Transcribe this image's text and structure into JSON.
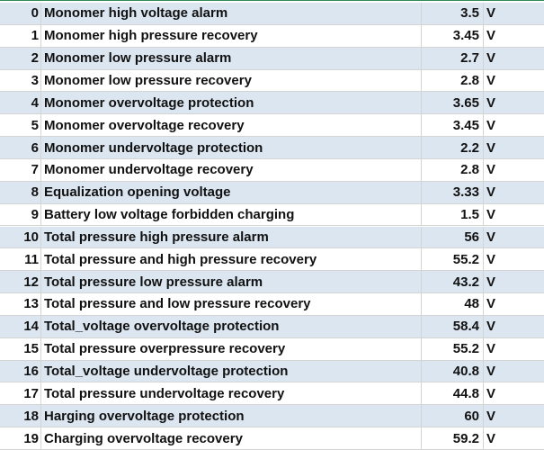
{
  "table": {
    "rows": [
      [
        0,
        "Monomer high voltage alarm",
        3.5,
        "V"
      ],
      [
        1,
        "Monomer high pressure recovery",
        3.45,
        "V"
      ],
      [
        2,
        "Monomer low pressure alarm",
        2.7,
        "V"
      ],
      [
        3,
        "Monomer low pressure recovery",
        2.8,
        "V"
      ],
      [
        4,
        "Monomer overvoltage protection",
        3.65,
        "V"
      ],
      [
        5,
        "Monomer overvoltage recovery",
        3.45,
        "V"
      ],
      [
        6,
        "Monomer undervoltage protection",
        2.2,
        "V"
      ],
      [
        7,
        "Monomer undervoltage recovery",
        2.8,
        "V"
      ],
      [
        8,
        "Equalization opening voltage",
        3.33,
        "V"
      ],
      [
        9,
        "Battery low voltage forbidden charging",
        1.5,
        "V"
      ],
      [
        10,
        "Total pressure high pressure alarm",
        56,
        "V"
      ],
      [
        11,
        "Total pressure and high pressure recovery",
        55.2,
        "V"
      ],
      [
        12,
        "Total pressure low pressure alarm",
        43.2,
        "V"
      ],
      [
        13,
        "Total pressure and low pressure recovery",
        48,
        "V"
      ],
      [
        14,
        "Total_voltage overvoltage protection",
        58.4,
        "V"
      ],
      [
        15,
        "Total pressure overpressure recovery",
        55.2,
        "V"
      ],
      [
        16,
        "Total_voltage undervoltage protection",
        40.8,
        "V"
      ],
      [
        17,
        "Total pressure undervoltage recovery",
        44.8,
        "V"
      ],
      [
        18,
        "Harging overvoltage protection",
        60,
        "V"
      ],
      [
        19,
        "Charging overvoltage recovery",
        59.2,
        "V"
      ]
    ]
  }
}
